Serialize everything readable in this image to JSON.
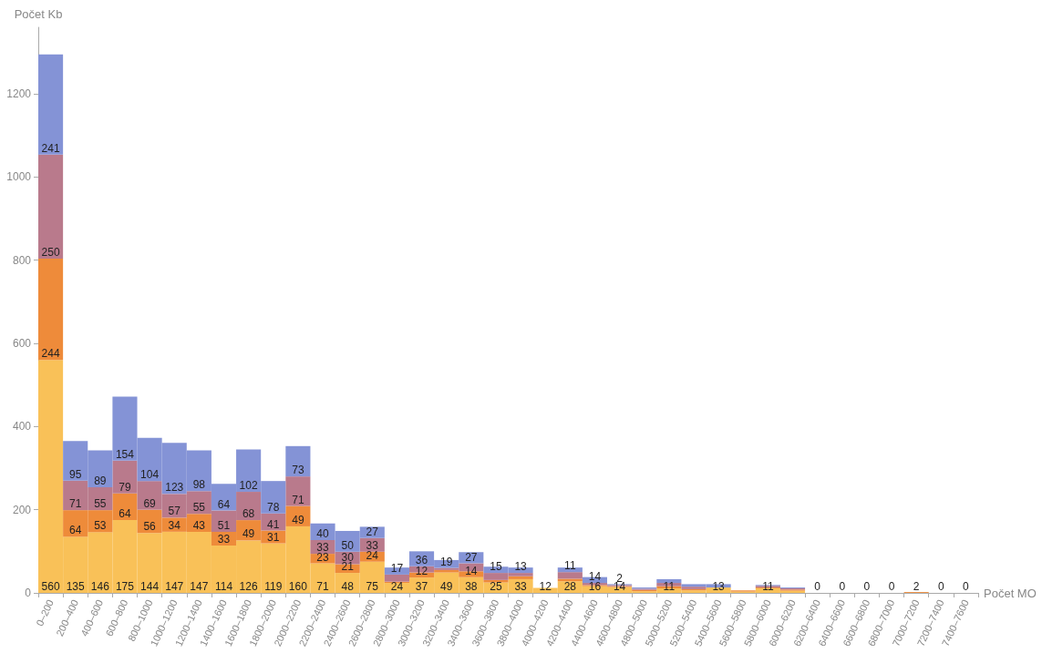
{
  "chart_data": {
    "type": "bar",
    "stacked": true,
    "xlabel": "Počet MO",
    "ylabel": "Počet Kb",
    "categories": [
      "0–200",
      "200–400",
      "400–600",
      "600–800",
      "800–1000",
      "1000–1200",
      "1200–1400",
      "1400–1600",
      "1600–1800",
      "1800–2000",
      "2000–2200",
      "2200–2400",
      "2400–2600",
      "2600–2800",
      "2800–3000",
      "3000–3200",
      "3200–3400",
      "3400–3600",
      "3600–3800",
      "3800–4000",
      "4000–4200",
      "4200–4400",
      "4400–4600",
      "4600–4800",
      "4800–5000",
      "5000–5200",
      "5200–5400",
      "5400–5600",
      "5600–5800",
      "5800–6000",
      "6000–6200",
      "6200–6400",
      "6400–6600",
      "6600–6800",
      "6800–7000",
      "7000–7200",
      "7200–7400",
      "7400–7600"
    ],
    "series": [
      {
        "color": "#f9c158",
        "values": [
          560,
          135,
          146,
          175,
          144,
          147,
          147,
          114,
          126,
          119,
          160,
          71,
          48,
          75,
          24,
          37,
          49,
          38,
          25,
          33,
          12,
          28,
          16,
          14,
          4,
          11,
          6,
          13,
          3,
          11,
          5,
          0,
          0,
          0,
          0,
          0,
          0,
          0
        ],
        "value_labels": [
          "560",
          "135",
          "146",
          "175",
          "144",
          "147",
          "147",
          "114",
          "126",
          "119",
          "160",
          "71",
          "48",
          "75",
          "24",
          "37",
          "49",
          "38",
          "25",
          "33",
          "12",
          "28",
          "16",
          "14",
          null,
          "11",
          null,
          "13",
          null,
          "11",
          null,
          "0",
          "0",
          "0",
          "0",
          null,
          "0",
          "0"
        ]
      },
      {
        "color": "#ee8b3a",
        "values": [
          244,
          64,
          53,
          64,
          56,
          34,
          43,
          33,
          49,
          31,
          49,
          23,
          21,
          24,
          3,
          12,
          6,
          14,
          6,
          7,
          0,
          6,
          3,
          2,
          3,
          5,
          3,
          0,
          3,
          2,
          3,
          0,
          0,
          0,
          0,
          2,
          0,
          0
        ],
        "value_labels": [
          "244",
          "64",
          "53",
          "64",
          "56",
          "34",
          "43",
          "33",
          "49",
          "31",
          "49",
          "23",
          "21",
          "24",
          null,
          "12",
          null,
          "14",
          null,
          null,
          null,
          null,
          null,
          null,
          null,
          null,
          null,
          null,
          null,
          null,
          null,
          null,
          null,
          null,
          null,
          "2",
          null,
          null
        ]
      },
      {
        "color": "#b97a8c",
        "values": [
          250,
          71,
          55,
          79,
          69,
          57,
          55,
          51,
          68,
          41,
          71,
          33,
          30,
          33,
          17,
          15,
          5,
          19,
          17,
          8,
          0,
          16,
          5,
          3,
          3,
          8,
          6,
          0,
          0,
          4,
          3,
          0,
          0,
          0,
          0,
          0,
          0,
          0
        ],
        "value_labels": [
          "250",
          "71",
          "55",
          "79",
          "69",
          "57",
          "55",
          "51",
          "68",
          "41",
          "71",
          "33",
          "30",
          "33",
          null,
          null,
          null,
          null,
          null,
          null,
          null,
          null,
          null,
          null,
          null,
          null,
          null,
          null,
          null,
          null,
          null,
          null,
          null,
          null,
          null,
          null,
          null,
          null
        ]
      },
      {
        "color": "#8493d6",
        "values": [
          241,
          95,
          89,
          154,
          104,
          123,
          98,
          64,
          102,
          78,
          73,
          40,
          50,
          27,
          17,
          36,
          19,
          27,
          15,
          13,
          0,
          11,
          14,
          2,
          3,
          9,
          6,
          8,
          0,
          2,
          2,
          0,
          0,
          0,
          0,
          0,
          0,
          0
        ],
        "value_labels": [
          "241",
          "95",
          "89",
          "154",
          "104",
          "123",
          "98",
          "64",
          "102",
          "78",
          "73",
          "40",
          "50",
          "27",
          "17",
          "36",
          "19",
          "27",
          "15",
          "13",
          null,
          "11",
          "14",
          "2",
          null,
          null,
          null,
          null,
          null,
          null,
          null,
          null,
          null,
          null,
          null,
          null,
          null,
          null
        ]
      }
    ],
    "ylim": [
      0,
      1360
    ],
    "yticks": [
      0,
      200,
      400,
      600,
      800,
      1000,
      1200
    ],
    "grid": false
  }
}
